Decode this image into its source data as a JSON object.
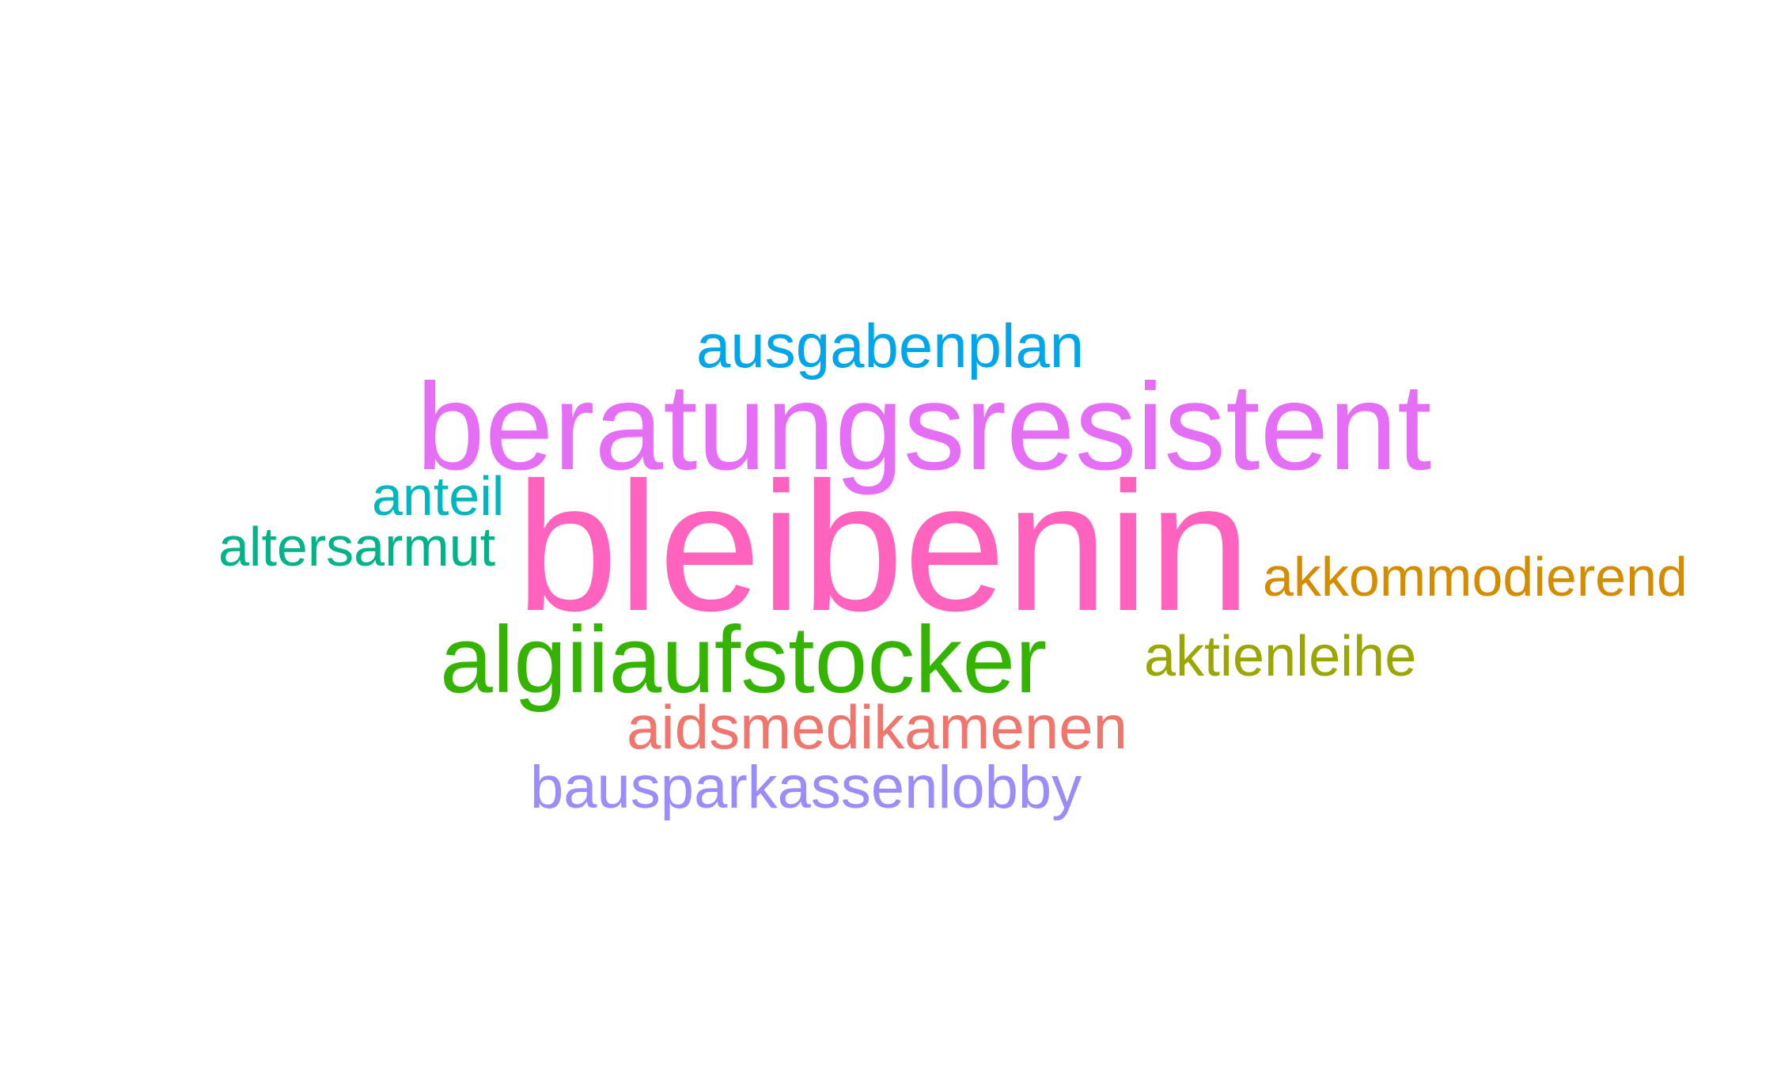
{
  "words": {
    "ausgabenplan": {
      "text": "ausgabenplan",
      "color": "#00a5ea"
    },
    "beratungsresistent": {
      "text": "beratungsresistent",
      "color": "#e46ff5"
    },
    "anteil": {
      "text": "anteil",
      "color": "#00b7be"
    },
    "altersarmut": {
      "text": "altersarmut",
      "color": "#00b487"
    },
    "bleibenin": {
      "text": "bleibenin",
      "color": "#ff63bd"
    },
    "akkommodierend": {
      "text": "akkommodierend",
      "color": "#d48c00"
    },
    "algiiaufstocker": {
      "text": "algiiaufstocker",
      "color": "#34b400"
    },
    "aktienleihe": {
      "text": "aktienleihe",
      "color": "#9aa700"
    },
    "aidsmedikamenen": {
      "text": "aidsmedikamenen",
      "color": "#f0756d"
    },
    "bausparkassenlobby": {
      "text": "bausparkassenlobby",
      "color": "#9a8cf9"
    }
  }
}
